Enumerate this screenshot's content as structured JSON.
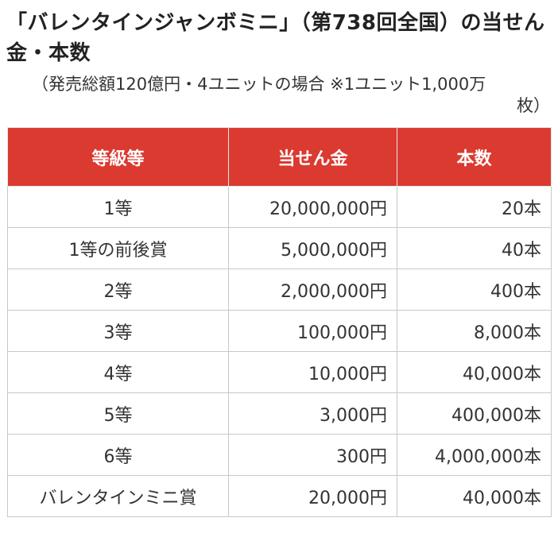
{
  "title": "「バレンタインジャンボミニ」（第738回全国）の当せん金・本数",
  "note": {
    "line1": "（発売総額120億円・4ユニットの場合 ※1ユニット1,000万",
    "line2": "枚）"
  },
  "table": {
    "headers": {
      "grade": "等級等",
      "amount": "当せん金",
      "count": "本数"
    },
    "rows": [
      {
        "grade": "1等",
        "amount": "20,000,000円",
        "count": "20本"
      },
      {
        "grade": "1等の前後賞",
        "amount": "5,000,000円",
        "count": "40本"
      },
      {
        "grade": "2等",
        "amount": "2,000,000円",
        "count": "400本"
      },
      {
        "grade": "3等",
        "amount": "100,000円",
        "count": "8,000本"
      },
      {
        "grade": "4等",
        "amount": "10,000円",
        "count": "40,000本"
      },
      {
        "grade": "5等",
        "amount": "3,000円",
        "count": "400,000本"
      },
      {
        "grade": "6等",
        "amount": "300円",
        "count": "4,000,000本"
      },
      {
        "grade": "バレンタインミニ賞",
        "amount": "20,000円",
        "count": "40,000本"
      }
    ]
  },
  "colors": {
    "header_bg": "#db3a31",
    "header_text": "#ffffff",
    "border": "#c8c8c8"
  }
}
